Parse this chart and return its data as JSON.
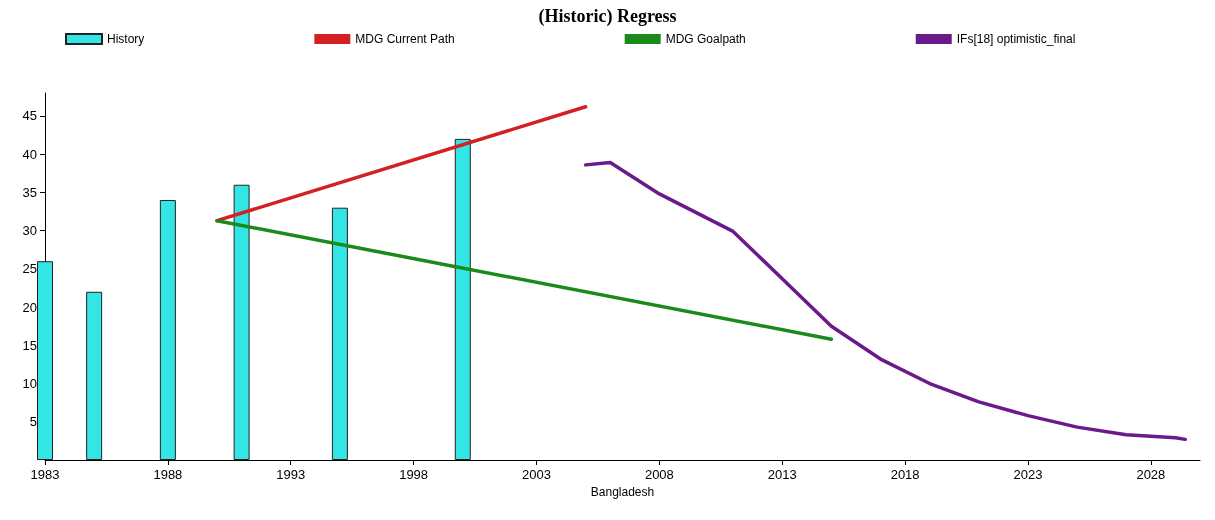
{
  "chart_data": {
    "type": "bar",
    "title": "(Historic) Regress",
    "xlabel": "Bangladesh",
    "xlim": [
      1983,
      2030
    ],
    "xticks": [
      1983,
      1988,
      1993,
      1998,
      2003,
      2008,
      2013,
      2018,
      2023,
      2028
    ],
    "ylim": [
      0,
      48
    ],
    "yticks": [
      5,
      10,
      15,
      20,
      25,
      30,
      35,
      40,
      45
    ],
    "grid": false,
    "legend": "top",
    "marker": "none",
    "series": [
      {
        "name": "History",
        "color": "#33e5e5",
        "x": [
          1983,
          1985,
          1988,
          1991,
          1995,
          2000
        ],
        "values": [
          26,
          22,
          34,
          36,
          33,
          42
        ]
      },
      {
        "name": "MDG Current Path",
        "type": "line",
        "color": "#d42020",
        "x": [
          1990,
          2005
        ],
        "values": [
          31.3,
          46.2
        ]
      },
      {
        "name": "MDG Goalpath",
        "type": "line",
        "color": "#1a8a1a",
        "x": [
          1990,
          2015
        ],
        "values": [
          31.3,
          15.8
        ]
      },
      {
        "name": "IFs[18] optimistic_final",
        "type": "line",
        "color": "#6a1a8a",
        "x": [
          2005,
          2006,
          2008,
          2011,
          2013,
          2015,
          2017,
          2019,
          2021,
          2023,
          2025,
          2027,
          2029,
          2029.4
        ],
        "values": [
          38.6,
          38.9,
          34.8,
          29.9,
          23.7,
          17.5,
          13.2,
          10,
          7.6,
          5.8,
          4.3,
          3.3,
          2.9,
          2.7
        ]
      }
    ]
  }
}
